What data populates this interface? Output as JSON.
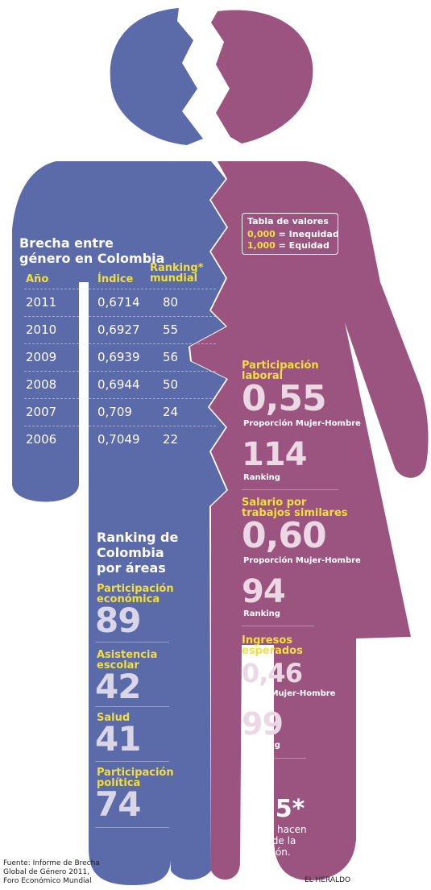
{
  "colors": {
    "blue": "#5b6aa8",
    "purple": "#9a547f",
    "yellow": "#f2df3a",
    "big_number_blue": "#d9d6e8",
    "big_number_purple": "#ecd7e4"
  },
  "table": {
    "title_line1": "Brecha entre",
    "title_line2": "género en Colombia",
    "headers": {
      "year": "Año",
      "index": "Índice",
      "rank1": "Ranking*",
      "rank2": "mundial"
    },
    "rows": [
      {
        "year": "2011",
        "index": "0,6714",
        "rank": "80"
      },
      {
        "year": "2010",
        "index": "0,6927",
        "rank": "55"
      },
      {
        "year": "2009",
        "index": "0,6939",
        "rank": "56"
      },
      {
        "year": "2008",
        "index": "0,6944",
        "rank": "50"
      },
      {
        "year": "2007",
        "index": "0,709",
        "rank": "24"
      },
      {
        "year": "2006",
        "index": "0,7049",
        "rank": "22"
      }
    ]
  },
  "legend": {
    "title": "Tabla de valores",
    "v1": "0,000",
    "l1": "= Inequidad",
    "v2": "1,000",
    "l2": "= Equidad"
  },
  "areas": {
    "title_line1": "Ranking de",
    "title_line2": "Colombia",
    "title_line3": "por áreas",
    "items": [
      {
        "l1": "Participación",
        "l2": "económica",
        "value": "89"
      },
      {
        "l1": "Asistencia",
        "l2": "escolar",
        "value": "42"
      },
      {
        "l1": "Salud",
        "l2": "",
        "value": "41"
      },
      {
        "l1": "Participación",
        "l2": "política",
        "value": "74"
      }
    ]
  },
  "right": {
    "labor": {
      "l1": "Participación",
      "l2": "laboral",
      "ratio": "0,55",
      "ratio_label": "Proporción Mujer-Hombre",
      "rank": "114",
      "rank_label": "Ranking"
    },
    "salary": {
      "l1": "Salario por",
      "l2": "trabajos similares",
      "ratio": "0,60",
      "ratio_label": "Proporción Mujer-Hombre",
      "rank": "94",
      "rank_label": "Ranking"
    },
    "income": {
      "l1": "Ingresos",
      "l2": "esperados",
      "ratio": "0,46",
      "ratio_label": "Prop. Mujer-Hombre",
      "rank": "99",
      "rank_label": "Ranking"
    },
    "countries": {
      "number": "135*",
      "l1": "países hacen",
      "l2": "parte de la",
      "l3": "medición."
    }
  },
  "footer": {
    "source1": "Fuente: Informe de Brecha",
    "source2": "Global de Género 2011,",
    "source3": "Foro Económico Mundial",
    "brand": "EL HERALDO"
  }
}
